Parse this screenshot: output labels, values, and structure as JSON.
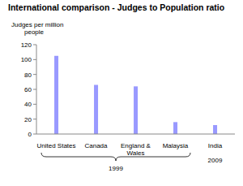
{
  "chart_data": {
    "type": "bar",
    "title": "International comparison - Judges to Population ratio",
    "y_label": "Judges per million people",
    "categories": [
      "United States",
      "Canada",
      "England & Wales",
      "Malaysia",
      "India"
    ],
    "values": [
      105,
      66,
      64,
      16,
      12
    ],
    "periods": [
      "1999",
      "1999",
      "1999",
      "1999",
      "2009"
    ],
    "color": "#9999ff",
    "ylim": [
      0,
      120
    ],
    "yticks": [
      0,
      20,
      40,
      60,
      80,
      100,
      120
    ],
    "grid": false
  }
}
